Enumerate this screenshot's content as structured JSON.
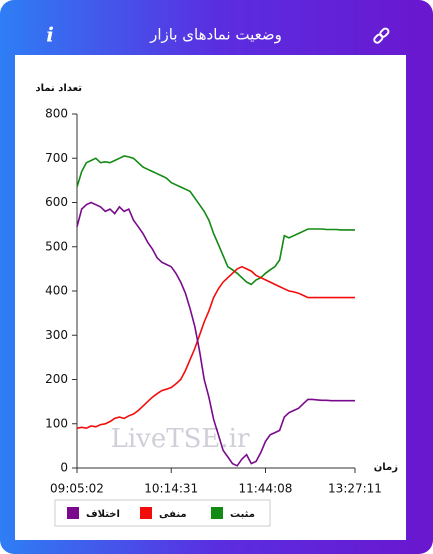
{
  "header": {
    "title": "وضعیت نمادهای بازار",
    "info_icon": "i"
  },
  "chart_data": {
    "type": "line",
    "y_label": "تعداد نماد",
    "x_label": "زمان",
    "watermark": "LiveTSE.ir",
    "categories": [
      "09:05:02",
      null,
      null,
      null,
      null,
      null,
      null,
      null,
      null,
      null,
      null,
      null,
      null,
      null,
      null,
      null,
      null,
      null,
      null,
      null,
      "10:14:31",
      null,
      null,
      null,
      null,
      null,
      null,
      null,
      null,
      null,
      null,
      null,
      null,
      null,
      null,
      null,
      null,
      null,
      null,
      null,
      "11:44:08",
      null,
      null,
      null,
      null,
      null,
      null,
      null,
      null,
      null,
      null,
      null,
      null,
      null,
      null,
      null,
      null,
      null,
      null,
      "13:27:11"
    ],
    "series": [
      {
        "name": "مثبت",
        "color": "#138a13",
        "values": [
          635,
          670,
          690,
          695,
          700,
          690,
          692,
          690,
          695,
          700,
          705,
          703,
          700,
          690,
          680,
          675,
          670,
          665,
          660,
          655,
          645,
          640,
          635,
          630,
          625,
          610,
          595,
          580,
          560,
          530,
          505,
          480,
          455,
          448,
          440,
          430,
          420,
          415,
          425,
          430,
          440,
          448,
          455,
          470,
          525,
          520,
          525,
          530,
          535,
          540,
          540,
          540,
          540,
          539,
          539,
          539,
          538,
          538,
          538,
          538
        ]
      },
      {
        "name": "منفی",
        "color": "#f20d0d",
        "values": [
          90,
          92,
          90,
          95,
          93,
          98,
          100,
          105,
          112,
          115,
          112,
          118,
          122,
          130,
          140,
          150,
          160,
          168,
          175,
          178,
          182,
          190,
          200,
          220,
          245,
          270,
          300,
          330,
          355,
          385,
          405,
          420,
          430,
          440,
          450,
          455,
          450,
          445,
          435,
          430,
          425,
          420,
          415,
          410,
          405,
          400,
          398,
          395,
          390,
          385,
          385,
          385,
          385,
          385,
          385,
          385,
          385,
          385,
          385,
          385
        ]
      },
      {
        "name": "اختلاف",
        "color": "#7a0a8c",
        "values": [
          545,
          585,
          595,
          600,
          595,
          590,
          580,
          585,
          575,
          590,
          580,
          585,
          560,
          545,
          530,
          510,
          495,
          475,
          465,
          460,
          455,
          440,
          420,
          395,
          360,
          320,
          265,
          200,
          160,
          110,
          75,
          40,
          25,
          10,
          5,
          20,
          30,
          10,
          15,
          35,
          60,
          75,
          80,
          85,
          115,
          125,
          130,
          135,
          145,
          155,
          155,
          154,
          153,
          153,
          152,
          152,
          152,
          152,
          152,
          152
        ]
      }
    ],
    "ylim": [
      0,
      800
    ],
    "yticks": [
      0,
      100,
      200,
      300,
      400,
      500,
      600,
      700,
      800
    ],
    "grid": false
  }
}
